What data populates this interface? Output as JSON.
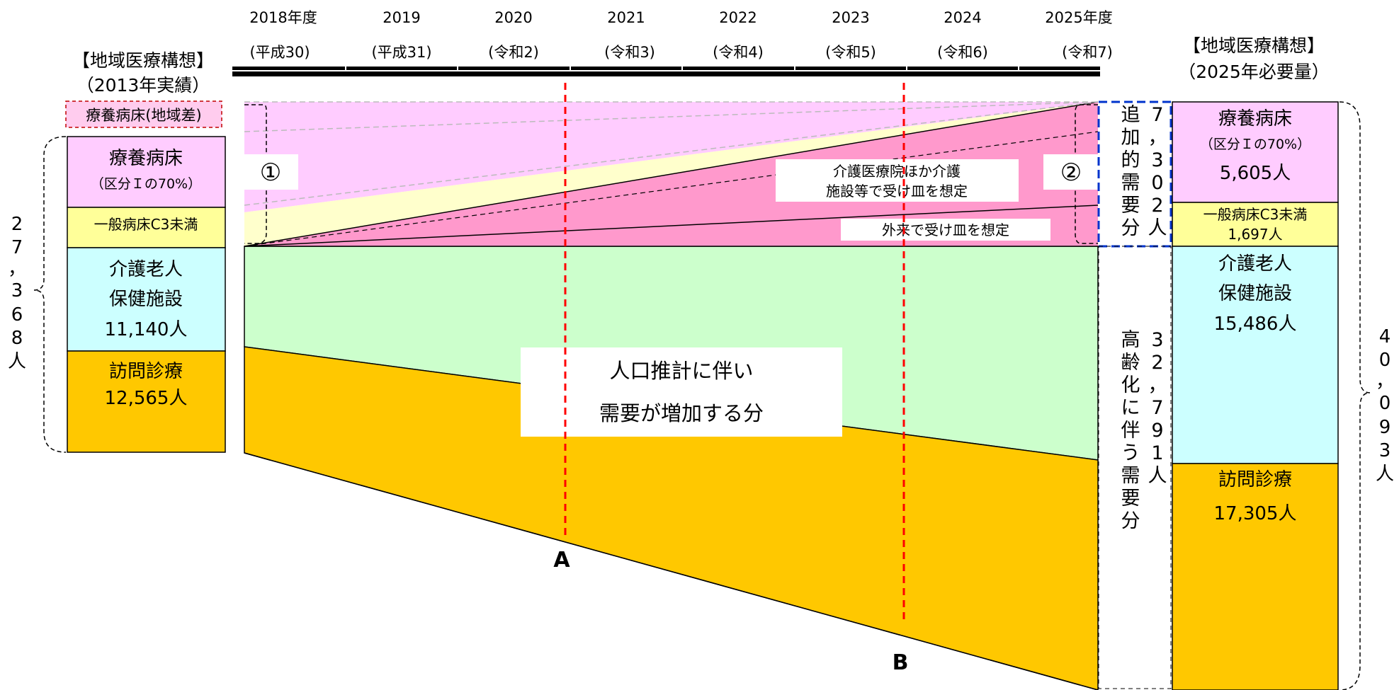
{
  "timeline": {
    "years": [
      "2018年度",
      "2019",
      "2020",
      "2021",
      "2022",
      "2023",
      "2024",
      "2025年度"
    ],
    "eras": [
      "(平成30)",
      "(平成31)",
      "(令和2)",
      "(令和3)",
      "(令和4)",
      "(令和5)",
      "(令和6)",
      "(令和7)"
    ]
  },
  "left_column": {
    "title_line1": "【地域医療構想】",
    "title_line2": "（2013年実績）",
    "regional_gap": "療養病床(地域差)",
    "blocks": [
      {
        "label": "療養病床",
        "sub": "（区分Ｉの70%）",
        "value": "",
        "color": "#ffccff"
      },
      {
        "label": "一般病床C3未満",
        "sub": "",
        "value": "",
        "color": "#ffff99"
      },
      {
        "label": "介護老人",
        "sub": "保健施設",
        "value": "11,140人",
        "color": "#ccffff"
      },
      {
        "label": "訪問診療",
        "sub": "",
        "value": "12,565人",
        "color": "#ffc800"
      }
    ],
    "total_chars": [
      "2",
      "7",
      "，",
      "3",
      "6",
      "8",
      "人"
    ]
  },
  "right_column": {
    "title_line1": "【地域医療構想】",
    "title_line2": "（2025年必要量）",
    "blocks": [
      {
        "label": "療養病床",
        "sub": "（区分Ｉの70%）",
        "value": "5,605人",
        "color": "#ffccff"
      },
      {
        "label": "一般病床C3未満",
        "sub": "",
        "value": "1,697人",
        "color": "#ffff99"
      },
      {
        "label": "介護老人",
        "sub": "保健施設",
        "value": "15,486人",
        "color": "#ccffff"
      },
      {
        "label": "訪問診療",
        "sub": "",
        "value": "17,305人",
        "color": "#ffc800"
      }
    ],
    "total_chars": [
      "4",
      "0",
      "，",
      "0",
      "9",
      "3",
      "人"
    ]
  },
  "middle": {
    "circle_1": "①",
    "circle_2": "②",
    "care_facility_line1": "介護医療院ほか介護",
    "care_facility_line2": "施設等で受け皿を想定",
    "outpatient": "外来で受け皿を想定",
    "population_line1": "人口推計に伴い",
    "population_line2": "需要が増加する分",
    "marker_a": "A",
    "marker_b": "B"
  },
  "side_labels": {
    "additional_chars": [
      "追",
      "加",
      "的",
      "需",
      "要",
      "分"
    ],
    "additional_num_chars": [
      "7",
      "，",
      "3",
      "0",
      "2",
      "人"
    ],
    "aging_chars": [
      "高",
      "齢",
      "化",
      "に",
      "伴",
      "う",
      "需",
      "要",
      "分"
    ],
    "aging_num_chars": [
      "3",
      "2",
      "，",
      "7",
      "9",
      "1",
      "人"
    ]
  },
  "colors": {
    "ryoyo": "#ffccff",
    "ippan": "#ffff99",
    "kaigo": "#ccffff",
    "homon": "#ffc800",
    "population_green": "#ccffcc",
    "additional_pink": "#ff99cc",
    "dashed_red": "#ff0000",
    "dashed_blue": "#0033cc"
  }
}
